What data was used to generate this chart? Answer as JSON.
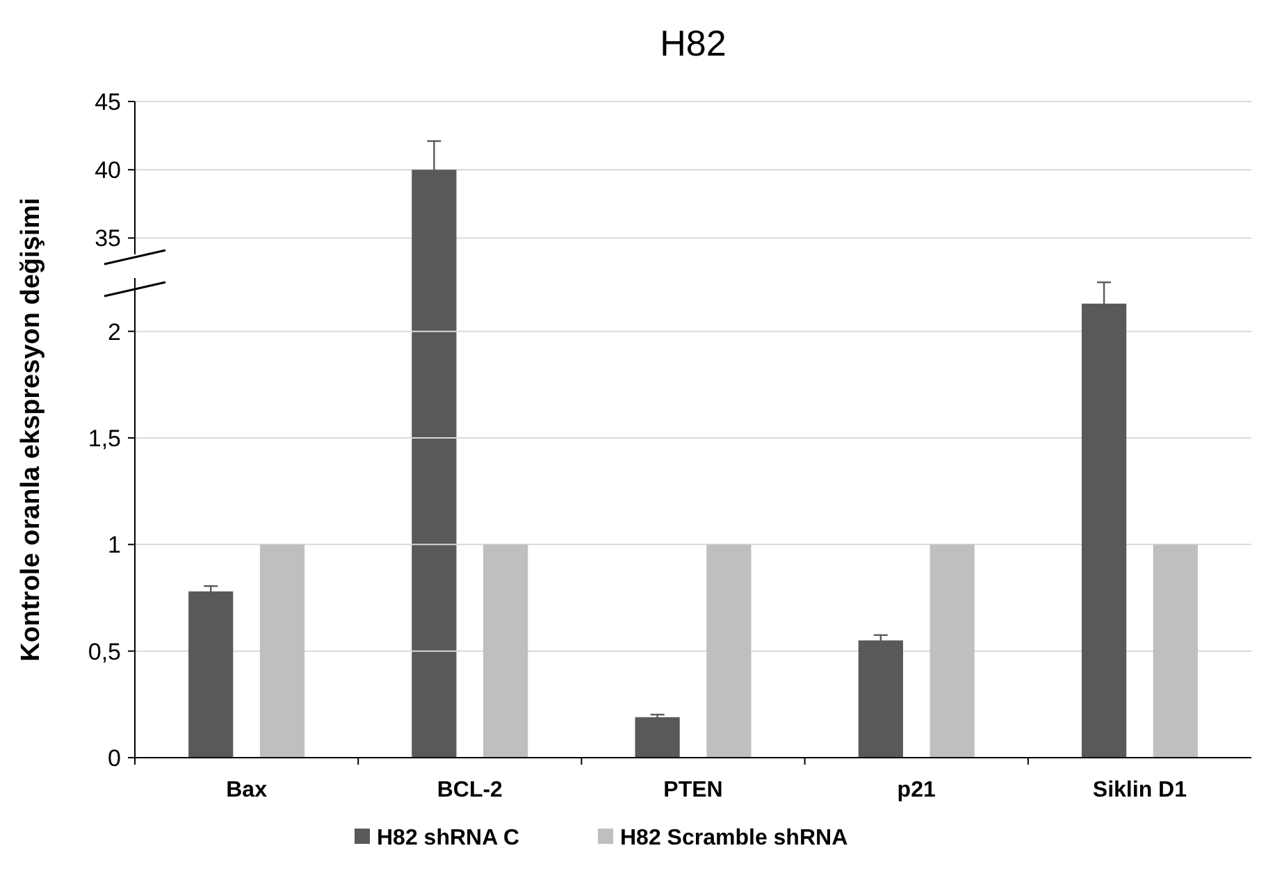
{
  "chart_data": [
    {
      "type": "bar",
      "title": "H82",
      "categories": [
        null,
        null,
        null,
        null,
        null
      ],
      "series": [
        {
          "color": "#595959",
          "values": [
            null,
            40,
            null,
            null,
            null
          ],
          "errors": [
            null,
            2.1,
            null,
            null,
            null
          ]
        },
        {
          "values": [
            null,
            null,
            null,
            null,
            null
          ]
        }
      ],
      "ylim": [
        33.8,
        45
      ],
      "yticks": [
        35,
        40,
        45
      ],
      "grid": "y",
      "tick_labels": "y"
    },
    {
      "type": "bar",
      "ylabel": "Kontrole oranla ekspresyon değişimi",
      "categories": [
        "Bax",
        "BCL-2",
        "PTEN",
        "p21",
        "Siklin D1"
      ],
      "series": [
        {
          "name": "H82 shRNA C",
          "color": "#595959",
          "values": [
            0.78,
            null,
            0.19,
            0.55,
            2.13
          ],
          "errors": [
            0.025,
            null,
            0.012,
            0.025,
            0.1
          ]
        },
        {
          "name": "H82 Scramble shRNA",
          "color": "#bfbfbf",
          "values": [
            1,
            1,
            1,
            1,
            1
          ]
        }
      ],
      "ylim": [
        0,
        2.25
      ],
      "yticks": [
        0,
        {
          "value": 0.5,
          "label": "0,5"
        },
        1,
        {
          "value": 1.5,
          "label": "1,5"
        },
        2
      ],
      "grid": "y",
      "legend": "bottom"
    }
  ]
}
